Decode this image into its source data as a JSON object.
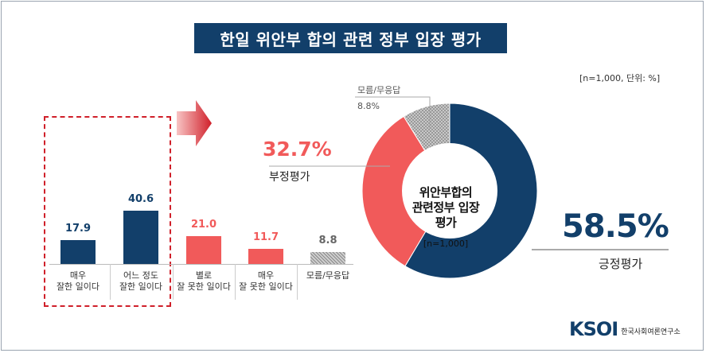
{
  "title": "한일 위안부 합의 관련 정부 입장 평가",
  "unit_note": "[n=1,000,  단위: %]",
  "colors": {
    "navy": "#123f6a",
    "red": "#f15a5a",
    "gray": "#9e9e9e",
    "dashed_box": "#d0202a"
  },
  "chart_data": [
    {
      "type": "bar",
      "categories": [
        "매우\n잘한 일이다",
        "어느 정도\n잘한 일이다",
        "별로\n잘 못한 일이다",
        "매우\n잘 못한 일이다",
        "모름/무응답"
      ],
      "values": [
        17.9,
        40.6,
        21.0,
        11.7,
        8.8
      ],
      "value_labels": [
        "17.9",
        "40.6",
        "21.0",
        "11.7",
        "8.8"
      ],
      "bar_colors": [
        "#123f6a",
        "#123f6a",
        "#f15a5a",
        "#f15a5a",
        "#9e9e9e"
      ],
      "category_lines": [
        [
          "매우",
          "잘한 일이다"
        ],
        [
          "어느 정도",
          "잘한 일이다"
        ],
        [
          "별로",
          "잘 못한 일이다"
        ],
        [
          "매우",
          "잘 못한 일이다"
        ],
        [
          "모름/무응답"
        ]
      ]
    },
    {
      "type": "pie",
      "variant": "donut",
      "center_title": [
        "위안부합의",
        "관련정부 입장",
        "평가"
      ],
      "center_note": "[n=1,000]",
      "slices": [
        {
          "label": "긍정평가",
          "value": 58.5,
          "value_label": "58.5%",
          "color": "#123f6a"
        },
        {
          "label": "부정평가",
          "value": 32.7,
          "value_label": "32.7%",
          "color": "#f15a5a"
        },
        {
          "label": "모름/무응답",
          "value": 8.8,
          "value_label": "8.8%",
          "color": "#9e9e9e"
        }
      ]
    }
  ],
  "logo": {
    "mark": "KSOI",
    "name": "한국사회여론연구소"
  }
}
